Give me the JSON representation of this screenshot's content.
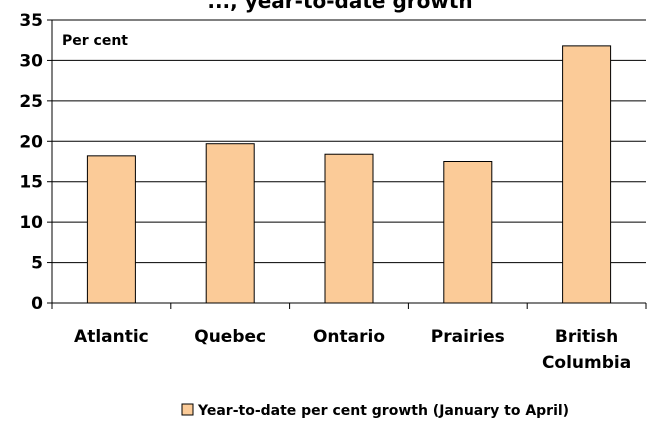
{
  "chart_data": {
    "type": "bar",
    "title": "..., year-to-date growth",
    "ylabel": "Per cent",
    "xlabel": "",
    "categories": [
      "Atlantic",
      "Quebec",
      "Ontario",
      "Prairies",
      "British Columbia"
    ],
    "category_lines": [
      [
        "Atlantic"
      ],
      [
        "Quebec"
      ],
      [
        "Ontario"
      ],
      [
        "Prairies"
      ],
      [
        "British",
        "Columbia"
      ]
    ],
    "series": [
      {
        "name": "Year-to-date per cent growth (January to April)",
        "values": [
          18.2,
          19.7,
          18.4,
          17.5,
          31.8
        ]
      }
    ],
    "ylim": [
      0,
      35
    ],
    "yticks": [
      0,
      5,
      10,
      15,
      20,
      25,
      30,
      35
    ],
    "grid": true,
    "legend": "bottom",
    "colors": {
      "bar_fill": "#FBCB98",
      "bar_stroke": "#000000",
      "grid": "#000000"
    }
  }
}
